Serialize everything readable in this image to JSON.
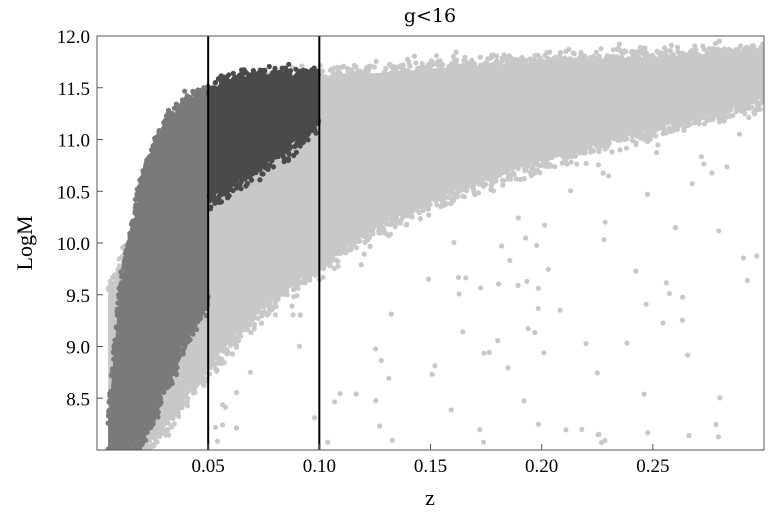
{
  "chart_data": {
    "type": "scatter",
    "title": "g<16",
    "xlabel": "z",
    "ylabel": "LogM",
    "xlim": [
      0.0,
      0.3
    ],
    "ylim": [
      8.0,
      12.0
    ],
    "x_ticks": [
      {
        "value": 0.05,
        "label": "0.05"
      },
      {
        "value": 0.1,
        "label": "0.10"
      },
      {
        "value": 0.15,
        "label": "0.15"
      },
      {
        "value": 0.2,
        "label": "0.20"
      },
      {
        "value": 0.25,
        "label": "0.25"
      }
    ],
    "y_ticks": [
      {
        "value": 8.5,
        "label": "8.5"
      },
      {
        "value": 9.0,
        "label": "9.0"
      },
      {
        "value": 9.5,
        "label": "9.5"
      },
      {
        "value": 10.0,
        "label": "10.0"
      },
      {
        "value": 10.5,
        "label": "10.5"
      },
      {
        "value": 11.0,
        "label": "11.0"
      },
      {
        "value": 11.5,
        "label": "11.5"
      },
      {
        "value": 12.0,
        "label": "12.0"
      }
    ],
    "vertical_lines": [
      0.05,
      0.1
    ],
    "grid": false,
    "series": [
      {
        "color": "#c8c8c8",
        "envelope": {
          "z": [
            0.005,
            0.02,
            0.03,
            0.05,
            0.07,
            0.1,
            0.13,
            0.16,
            0.2,
            0.25,
            0.3
          ],
          "upper": [
            9.5,
            10.3,
            10.8,
            11.4,
            11.55,
            11.6,
            11.65,
            11.7,
            11.75,
            11.8,
            11.85
          ],
          "lower": [
            8.0,
            8.0,
            8.2,
            8.8,
            9.3,
            9.8,
            10.2,
            10.5,
            10.8,
            11.1,
            11.4
          ]
        }
      },
      {
        "color": "#7a7a7a",
        "envelope": {
          "z": [
            0.005,
            0.01,
            0.02,
            0.03,
            0.04,
            0.05
          ],
          "upper": [
            8.3,
            9.5,
            10.6,
            11.1,
            11.35,
            11.45
          ],
          "lower": [
            8.0,
            8.0,
            8.1,
            8.6,
            9.1,
            9.5
          ]
        }
      },
      {
        "color": "#4a4a4a",
        "envelope": {
          "z": [
            0.05,
            0.06,
            0.07,
            0.08,
            0.09,
            0.1
          ],
          "upper": [
            11.45,
            11.55,
            11.6,
            11.6,
            11.6,
            11.6
          ],
          "lower": [
            10.4,
            10.6,
            10.7,
            10.85,
            11.0,
            11.2
          ]
        }
      }
    ]
  }
}
